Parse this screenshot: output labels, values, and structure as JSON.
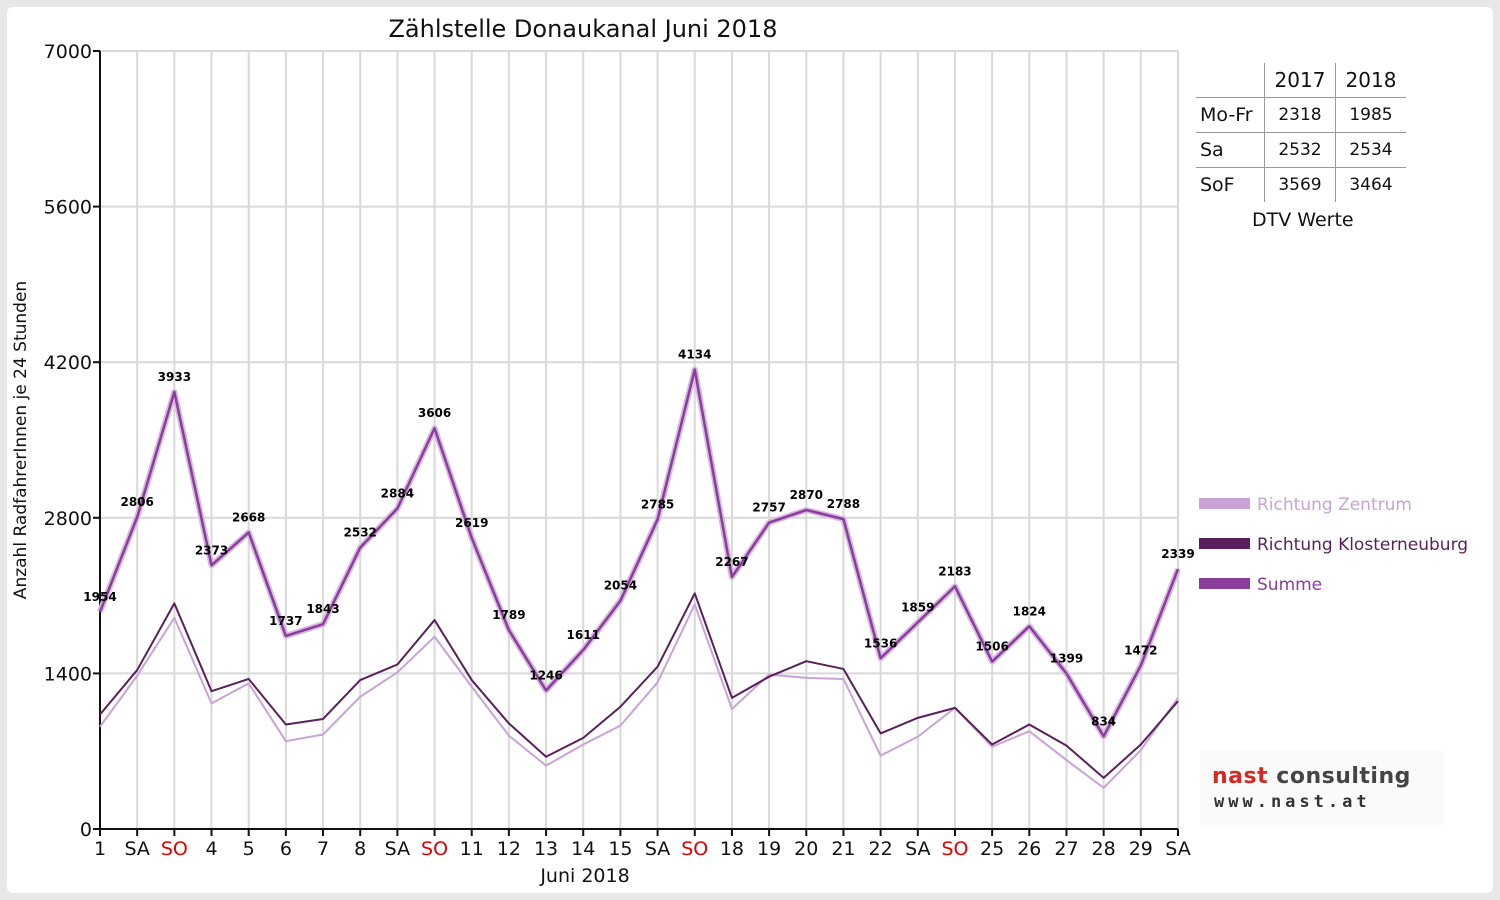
{
  "chart_data": {
    "type": "line",
    "title": "Zählstelle Donaukanal Juni 2018",
    "xlabel": "Juni 2018",
    "ylabel": "Anzahl RadfahrerInnen je 24 Stunden",
    "ylim": [
      0,
      7000
    ],
    "yticks": [
      0,
      1400,
      2800,
      4200,
      5600,
      7000
    ],
    "grid": true,
    "legend_position": "right",
    "categories": [
      "1",
      "SA",
      "SO",
      "4",
      "5",
      "6",
      "7",
      "8",
      "SA",
      "SO",
      "11",
      "12",
      "13",
      "14",
      "15",
      "SA",
      "SO",
      "18",
      "19",
      "20",
      "21",
      "22",
      "SA",
      "SO",
      "25",
      "26",
      "27",
      "28",
      "29",
      "SA"
    ],
    "sunday_color": "#e00000",
    "series": [
      {
        "name": "Richtung Zentrum",
        "color": "#c9a3d6",
        "values": [
          920,
          1380,
          1900,
          1130,
          1310,
          790,
          850,
          1190,
          1410,
          1730,
          1280,
          840,
          570,
          760,
          930,
          1320,
          2020,
          1080,
          1390,
          1360,
          1350,
          660,
          830,
          1090,
          740,
          880,
          620,
          370,
          710,
          1180
        ]
      },
      {
        "name": "Richtung Klosterneuburg",
        "color": "#5a1f5c",
        "values": [
          1030,
          1430,
          2030,
          1240,
          1350,
          940,
          990,
          1340,
          1480,
          1880,
          1340,
          950,
          650,
          820,
          1100,
          1460,
          2120,
          1180,
          1370,
          1510,
          1440,
          860,
          1000,
          1090,
          760,
          940,
          750,
          460,
          760,
          1150
        ]
      },
      {
        "name": "Summe",
        "color": "#8a3d9a",
        "values": [
          1954,
          2806,
          3933,
          2373,
          2668,
          1737,
          1843,
          2532,
          2884,
          3606,
          2619,
          1789,
          1246,
          1611,
          2054,
          2785,
          4134,
          2267,
          2757,
          2870,
          2788,
          1536,
          1859,
          2183,
          1506,
          1824,
          1399,
          834,
          1472,
          2339
        ]
      }
    ],
    "data_labels": [
      "1954",
      "2806",
      "3933",
      "2373",
      "2668",
      "1737",
      "1843",
      "2532",
      "2884",
      "3606",
      "2619",
      "1789",
      "1246",
      "1611",
      "2054",
      "2785",
      "4134",
      "2267",
      "2757",
      "2870",
      "2788",
      "1536",
      "1859",
      "2183",
      "1506",
      "1824",
      "1399",
      "834",
      "1472",
      "2339"
    ]
  },
  "dtv_table": {
    "headers": [
      "",
      "2017",
      "2018"
    ],
    "rows": [
      {
        "label": "Mo-Fr",
        "v2017": "2318",
        "v2018": "1985"
      },
      {
        "label": "Sa",
        "v2017": "2532",
        "v2018": "2534"
      },
      {
        "label": "SoF",
        "v2017": "3569",
        "v2018": "3464"
      }
    ],
    "caption": "DTV Werte"
  },
  "logo": {
    "name_part1": "nast",
    "name_part2": "consulting",
    "url": "www.nast.at"
  }
}
